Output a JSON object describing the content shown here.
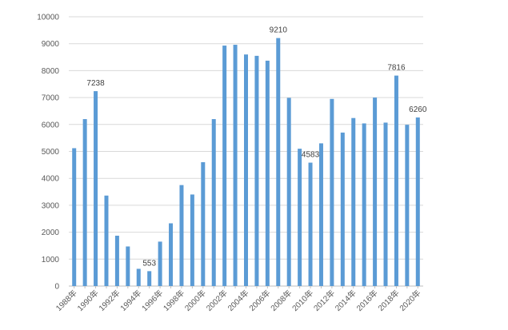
{
  "chart_data": {
    "type": "bar",
    "title": "",
    "xlabel": "",
    "ylabel": "",
    "ylim": [
      0,
      10000
    ],
    "yticks": [
      0,
      1000,
      2000,
      3000,
      4000,
      5000,
      6000,
      7000,
      8000,
      9000,
      10000
    ],
    "grid": true,
    "legend": "none",
    "bar_color": "#5B9BD5",
    "categories": [
      "1988年",
      "1989年",
      "1990年",
      "1991年",
      "1992年",
      "1993年",
      "1994年",
      "1995年",
      "1996年",
      "1997年",
      "1998年",
      "1999年",
      "2000年",
      "2001年",
      "2002年",
      "2003年",
      "2004年",
      "2005年",
      "2006年",
      "2007年",
      "2008年",
      "2009年",
      "2010年",
      "2011年",
      "2012年",
      "2013年",
      "2014年",
      "2015年",
      "2016年",
      "2017年",
      "2018年",
      "2019年",
      "2020年"
    ],
    "x_tick_labels": [
      "1988年",
      "1990年",
      "1992年",
      "1994年",
      "1996年",
      "1998年",
      "2000年",
      "2002年",
      "2004年",
      "2006年",
      "2008年",
      "2010年",
      "2012年",
      "2014年",
      "2016年",
      "2018年",
      "2020年"
    ],
    "values": [
      5120,
      6200,
      7238,
      3360,
      1870,
      1470,
      640,
      553,
      1650,
      2330,
      3750,
      3400,
      4600,
      6200,
      8930,
      8960,
      8600,
      8550,
      8370,
      9210,
      6990,
      5100,
      4583,
      5300,
      6950,
      5700,
      6240,
      6040,
      7000,
      6070,
      7816,
      5990,
      6260
    ],
    "data_labels": [
      {
        "category": "1990年",
        "text": "7238"
      },
      {
        "category": "1995年",
        "text": "553"
      },
      {
        "category": "2007年",
        "text": "9210"
      },
      {
        "category": "2010年",
        "text": "4583"
      },
      {
        "category": "2018年",
        "text": "7816"
      },
      {
        "category": "2020年",
        "text": "6260"
      }
    ]
  }
}
